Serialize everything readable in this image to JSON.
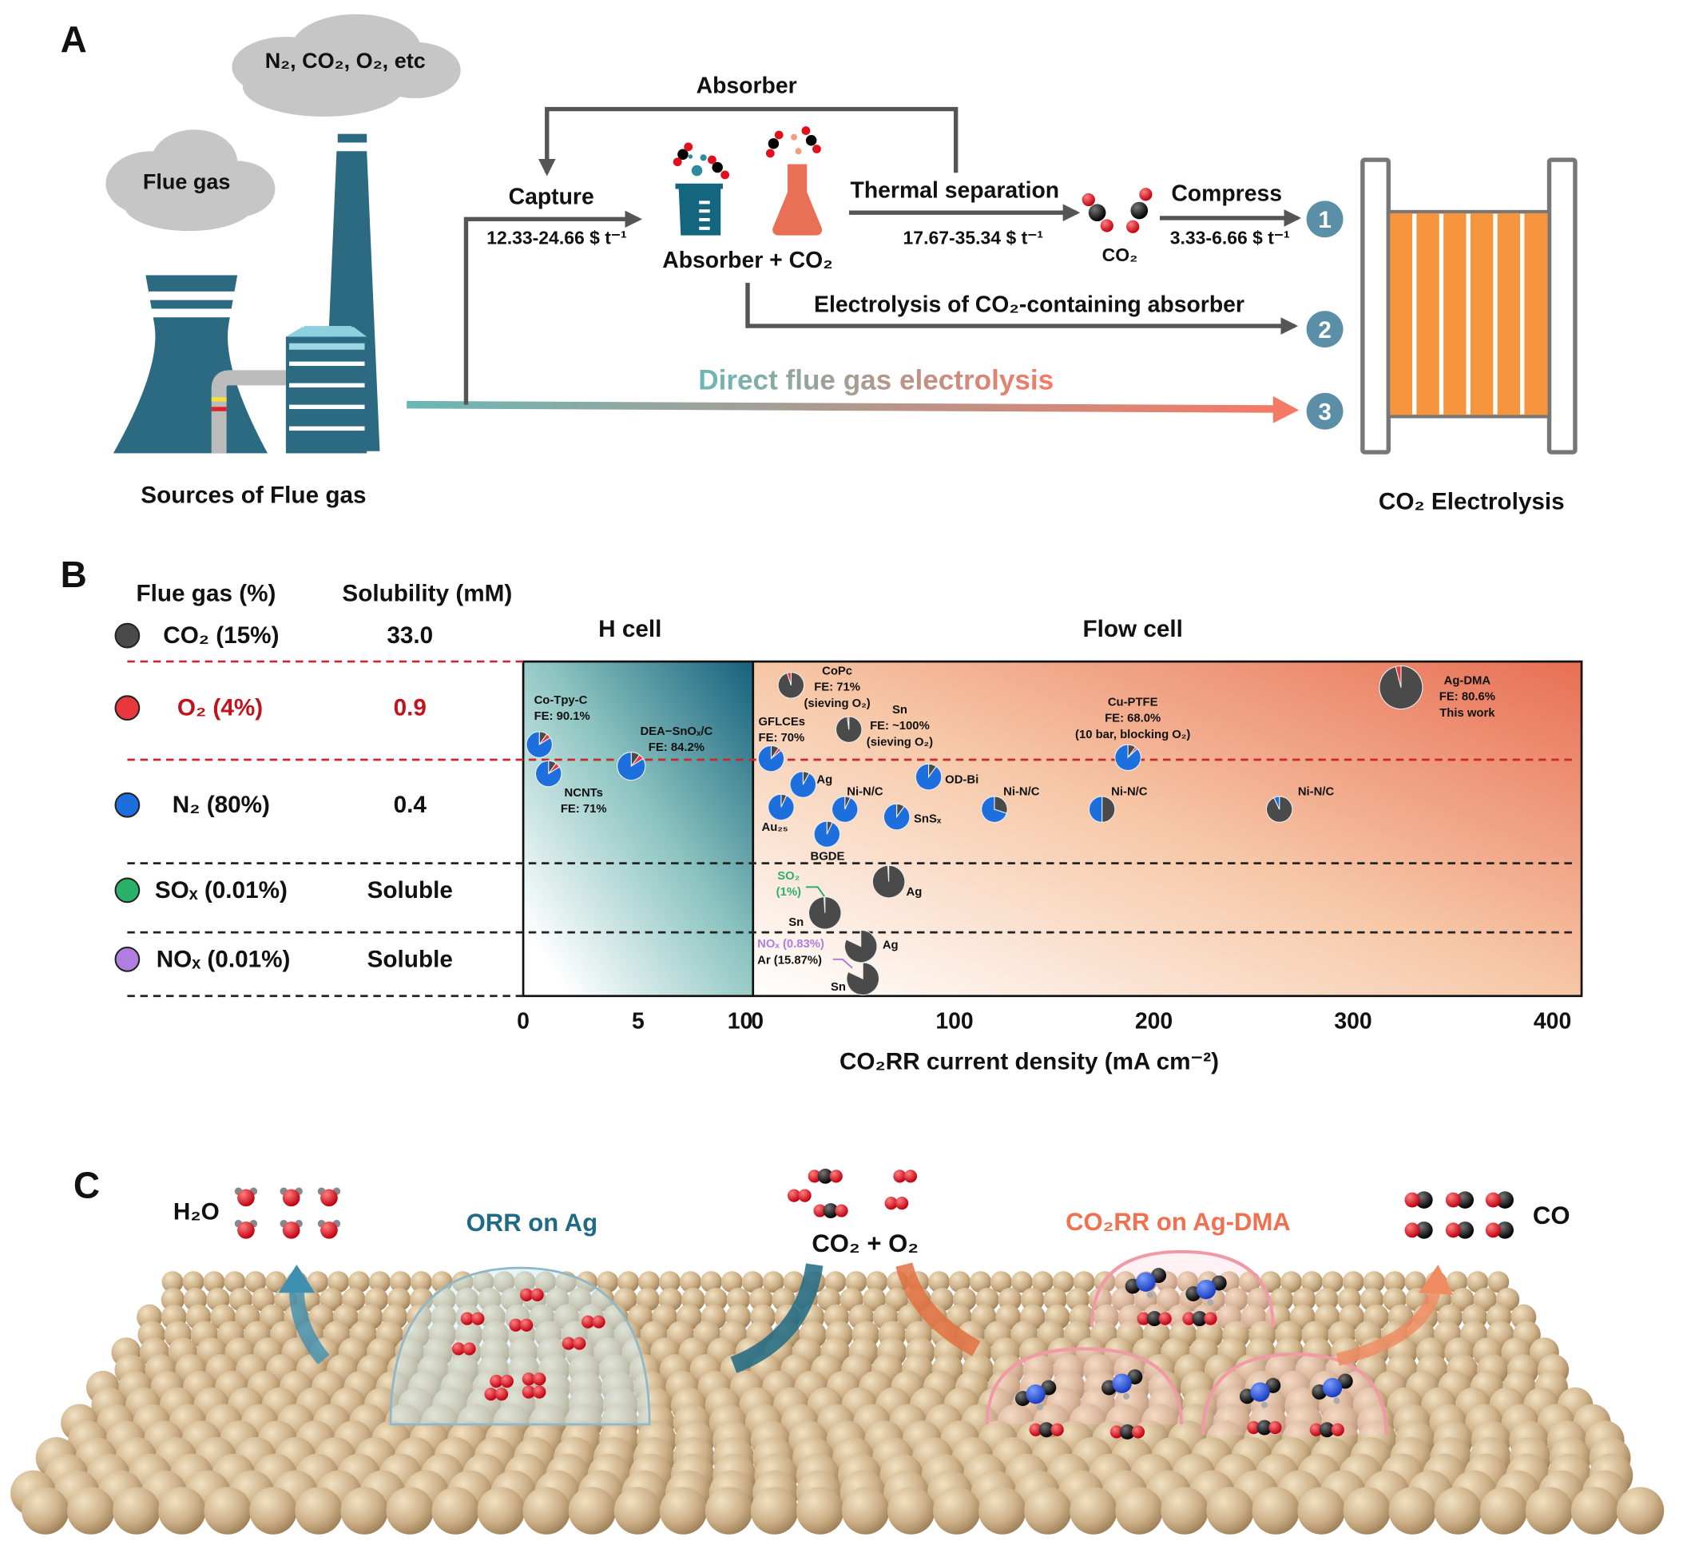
{
  "panel_a": {
    "label": "A",
    "cloud_top": "N₂, CO₂, O₂, etc",
    "cloud_flue": "Flue gas",
    "sources": "Sources of Flue gas",
    "absorber": "Absorber",
    "capture": "Capture",
    "capture_cost": "12.33-24.66 $ t⁻¹",
    "absorber_co2": "Absorber + CO₂",
    "thermal": "Thermal separation",
    "thermal_cost": "17.67-35.34 $ t⁻¹",
    "co2": "CO₂",
    "compress": "Compress",
    "compress_cost": "3.33-6.66 $ t⁻¹",
    "electrolysis_absorber": "Electrolysis of CO₂-containing absorber",
    "direct": "Direct flue gas electrolysis",
    "routes": [
      "1",
      "2",
      "3"
    ],
    "electrolyzer": "CO₂ Electrolysis",
    "colors": {
      "teal": "#2b6a80",
      "salmon": "#ee7a60",
      "route": "#5b8fa8",
      "stack_orange": "#f7953f"
    }
  },
  "panel_b": {
    "label": "B",
    "header_gas": "Flue gas (%)",
    "header_solubility": "Solubility (mM)",
    "rows": [
      {
        "gas": "CO₂ (15%)",
        "solubility": "33.0",
        "color": "#4a4a4a",
        "text_color": "#111111"
      },
      {
        "gas": "O₂ (4%)",
        "solubility": "0.9",
        "color": "#e8383d",
        "text_color": "#c0141c"
      },
      {
        "gas": "N₂ (80%)",
        "solubility": "0.4",
        "color": "#1c6fdc",
        "text_color": "#111111"
      },
      {
        "gas": "SOₓ (0.01%)",
        "solubility": "Soluble",
        "color": "#2bb069",
        "text_color": "#111111"
      },
      {
        "gas": "NOₓ (0.01%)",
        "solubility": "Soluble",
        "color": "#b07de0",
        "text_color": "#111111"
      }
    ]
  },
  "chart_data": {
    "type": "scatter",
    "marker": "pie",
    "xlabel": "CO₂RR current density (mA cm⁻²)",
    "ylabel": "",
    "panels": [
      {
        "title": "H cell",
        "xlim": [
          0,
          10
        ],
        "ticks": [
          "0",
          "5",
          "10"
        ]
      },
      {
        "title": "Flow cell",
        "xlim": [
          0,
          400
        ],
        "ticks": [
          "0",
          "100",
          "200",
          "300",
          "400"
        ]
      }
    ],
    "slice_colors": {
      "co2": "#4a4a4a",
      "o2": "#e8383d",
      "n2": "#1c6fdc"
    },
    "grid": false,
    "annotations": {
      "so2": "SO₂ (1%)",
      "nox": "NOₓ (0.83%)",
      "ar": "Ar (15.87%)"
    },
    "points": [
      {
        "cell": "H",
        "x": 0.7,
        "row": "CO₂/O₂/N₂",
        "label": [
          "Co-Tpy-C",
          "FE: 90.1%"
        ],
        "co2": 0.1,
        "o2": 0.06,
        "n2": 0.84
      },
      {
        "cell": "H",
        "x": 1.1,
        "row": "CO₂/O₂/N₂",
        "label": [
          "NCNTs",
          "FE: 71%"
        ],
        "co2": 0.1,
        "o2": 0.06,
        "n2": 0.84
      },
      {
        "cell": "H",
        "x": 4.7,
        "row": "CO₂/O₂/N₂",
        "label": [
          "DEA−SnOₓ/C",
          "FE: 84.2%"
        ],
        "co2": 0.1,
        "o2": 0.06,
        "n2": 0.84
      },
      {
        "cell": "Flow",
        "x": 18,
        "row": "CO₂/O₂",
        "label": [
          "CoPc",
          "FE: 71%",
          "(sieving O₂)"
        ],
        "co2": 0.95,
        "o2": 0.05,
        "n2": 0
      },
      {
        "cell": "Flow",
        "x": 8,
        "row": "CO₂/O₂/N₂",
        "label": [
          "GFLCEs",
          "FE: 70%"
        ],
        "co2": 0.1,
        "o2": 0.04,
        "n2": 0.86
      },
      {
        "cell": "Flow",
        "x": 47,
        "row": "CO₂/O₂",
        "label": [
          "Sn",
          "FE: ~100%",
          "(sieving O₂)"
        ],
        "co2": 0.98,
        "o2": 0.02,
        "n2": 0
      },
      {
        "cell": "Flow",
        "x": 24,
        "row": "CO₂/N₂",
        "label": [
          "Ag"
        ],
        "co2": 0.08,
        "o2": 0,
        "n2": 0.92
      },
      {
        "cell": "Flow",
        "x": 13,
        "row": "CO₂/N₂",
        "label": [
          "Au₂₅"
        ],
        "co2": 0.07,
        "o2": 0,
        "n2": 0.93
      },
      {
        "cell": "Flow",
        "x": 45,
        "row": "CO₂/N₂",
        "label": [
          "Ni-N/C"
        ],
        "co2": 0.07,
        "o2": 0,
        "n2": 0.93
      },
      {
        "cell": "Flow",
        "x": 36,
        "row": "CO₂/N₂",
        "label": [
          "BGDE"
        ],
        "co2": 0.07,
        "o2": 0,
        "n2": 0.93
      },
      {
        "cell": "Flow",
        "x": 71,
        "row": "CO₂/N₂",
        "label": [
          "SnSₓ"
        ],
        "co2": 0.1,
        "o2": 0,
        "n2": 0.9
      },
      {
        "cell": "Flow",
        "x": 87,
        "row": "CO₂/N₂",
        "label": [
          "OD-Bi"
        ],
        "co2": 0.1,
        "o2": 0,
        "n2": 0.9
      },
      {
        "cell": "Flow",
        "x": 120,
        "row": "CO₂/N₂",
        "label": [
          "Ni-N/C"
        ],
        "co2": 0.3,
        "o2": 0,
        "n2": 0.7
      },
      {
        "cell": "Flow",
        "x": 187,
        "row": "CO₂/O₂/N₂",
        "label": [
          "Cu-PTFE",
          "FE: 68.0%",
          "(10 bar, blocking O₂)"
        ],
        "co2": 0.1,
        "o2": 0.03,
        "n2": 0.87
      },
      {
        "cell": "Flow",
        "x": 174,
        "row": "CO₂/N₂",
        "label": [
          "Ni-N/C"
        ],
        "co2": 0.5,
        "o2": 0,
        "n2": 0.5
      },
      {
        "cell": "Flow",
        "x": 263,
        "row": "CO₂/N₂",
        "label": [
          "Ni-N/C"
        ],
        "co2": 0.93,
        "o2": 0,
        "n2": 0.07
      },
      {
        "cell": "Flow",
        "x": 324,
        "row": "CO₂/O₂",
        "label": [
          "Ag-DMA",
          "FE: 80.6%",
          "This work"
        ],
        "co2": 0.96,
        "o2": 0.04,
        "n2": 0
      },
      {
        "cell": "Flow",
        "x": 67,
        "row": "SOₓ",
        "label": [
          "Ag"
        ],
        "co2": 0.99,
        "o2": 0,
        "n2": 0
      },
      {
        "cell": "Flow",
        "x": 35,
        "row": "SOₓ",
        "label": [
          "Sn"
        ],
        "co2": 0.99,
        "o2": 0,
        "n2": 0
      },
      {
        "cell": "Flow",
        "x": 53,
        "row": "NOₓ",
        "label": [
          "Ag"
        ],
        "co2": 0.82,
        "o2": 0,
        "n2": 0
      },
      {
        "cell": "Flow",
        "x": 54,
        "row": "NOₓ",
        "label": [
          "Sn"
        ],
        "co2": 0.82,
        "o2": 0,
        "n2": 0
      }
    ]
  },
  "panel_c": {
    "label": "C",
    "h2o": "H₂O",
    "orr": "ORR on Ag",
    "co2_o2": "CO₂ + O₂",
    "co2rr": "CO₂RR on Ag-DMA",
    "co": "CO",
    "colors": {
      "orr": "#1f6a85",
      "co2rr": "#f07050"
    }
  }
}
